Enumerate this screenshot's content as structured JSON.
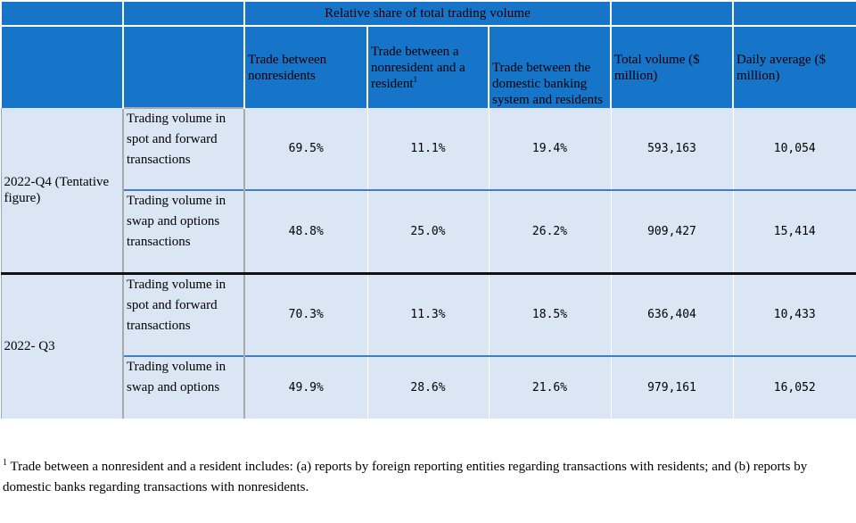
{
  "table": {
    "group_header": "Relative share of total trading volume",
    "columns": [
      "Trade between nonresidents",
      "Trade between a nonresident and a resident",
      "Trade between the domestic banking system and residents",
      "Total volume ($ million)",
      "Daily average ($ million)"
    ],
    "column_footnote_mark": "1",
    "groups": [
      {
        "period": "2022-Q4 (Tentative figure)",
        "rows": [
          {
            "label": "Trading volume in spot and forward transactions",
            "values": [
              "69.5%",
              "11.1%",
              "19.4%",
              "593,163",
              "10,054"
            ]
          },
          {
            "label": "Trading volume in swap and options transactions",
            "values": [
              "48.8%",
              "25.0%",
              "26.2%",
              "909,427",
              "15,414"
            ]
          }
        ]
      },
      {
        "period": "2022- Q3",
        "rows": [
          {
            "label": "Trading volume in spot and forward transactions",
            "values": [
              "70.3%",
              "11.3%",
              "18.5%",
              "636,404",
              "10,433"
            ]
          },
          {
            "label": "Trading volume in swap and options",
            "values": [
              "49.9%",
              "28.6%",
              "21.6%",
              "979,161",
              "16,052"
            ]
          }
        ]
      }
    ]
  },
  "footnote": {
    "mark": "1",
    "text": "Trade between a nonresident and a resident includes: (a) reports by foreign reporting entities regarding transactions with residents; and (b) reports by domestic banks regarding transactions with nonresidents."
  },
  "colors": {
    "header_bg": "#1674c9",
    "body_bg": "#dae6f3",
    "row_separator": "#3f7fc2",
    "group_separator": "#111111"
  }
}
